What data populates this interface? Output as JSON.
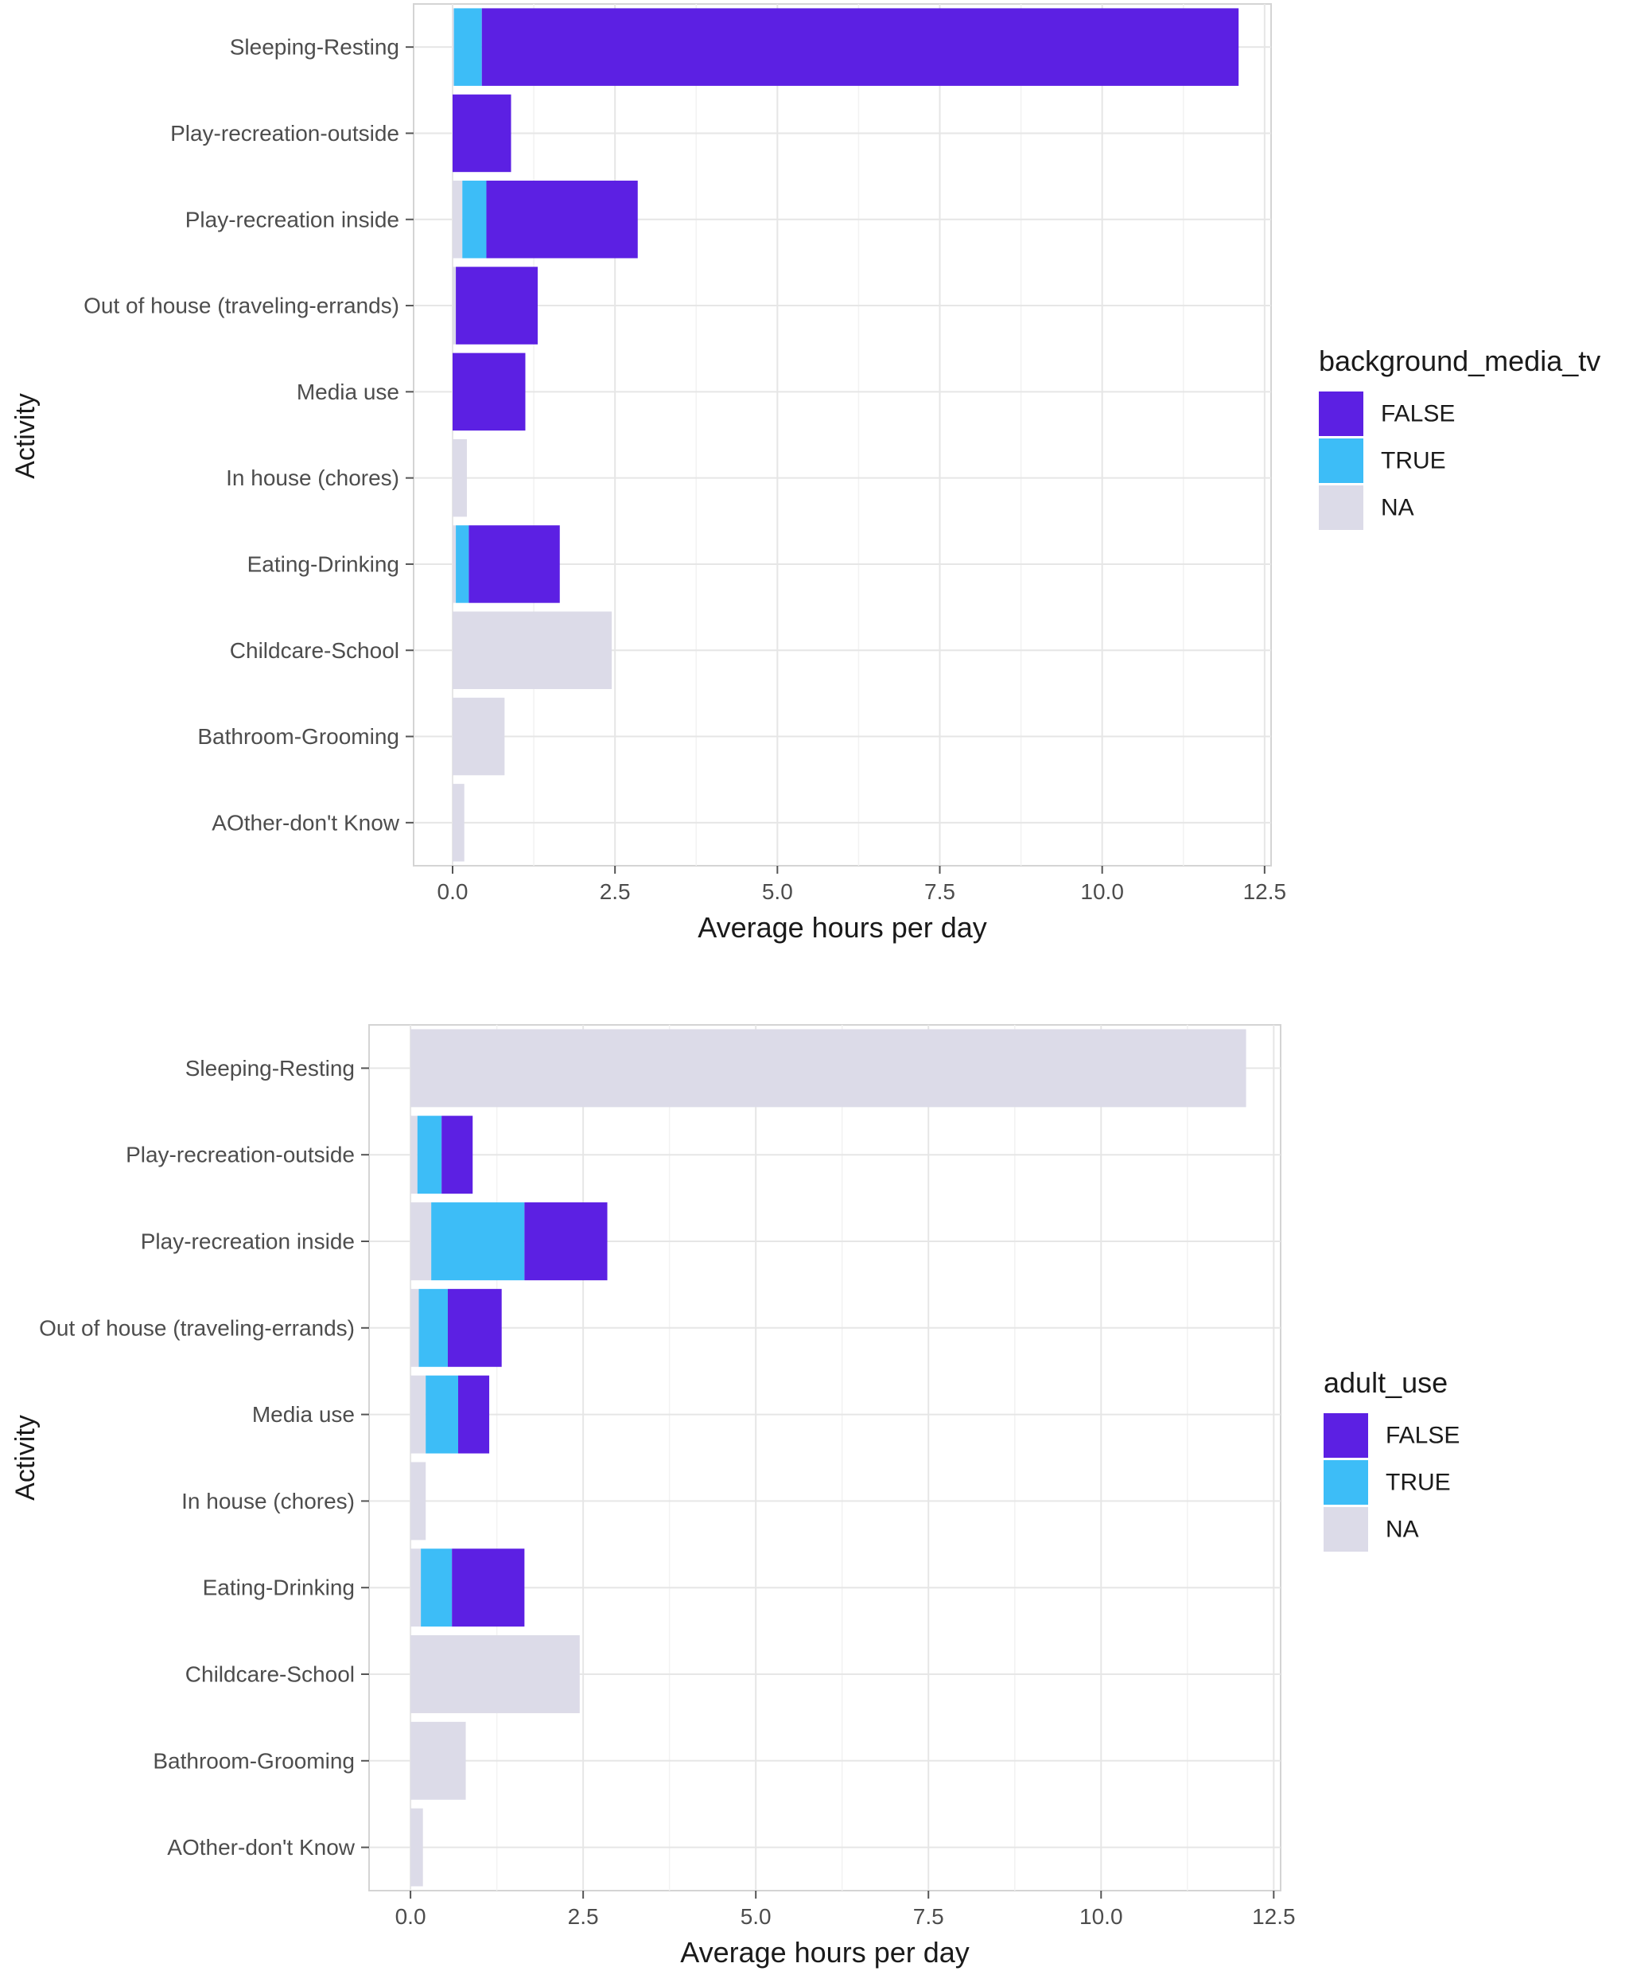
{
  "chart_data": [
    {
      "type": "bar",
      "orientation": "horizontal",
      "stacked": true,
      "xlabel": "Average hours per day",
      "ylabel": "Activity",
      "xlim": [
        -0.6,
        12.6
      ],
      "xticks": [
        0.0,
        2.5,
        5.0,
        7.5,
        10.0,
        12.5
      ],
      "xtick_labels": [
        "0.0",
        "2.5",
        "5.0",
        "7.5",
        "10.0",
        "12.5"
      ],
      "grid": true,
      "legend": {
        "title": "background_media_tv",
        "entries": [
          "FALSE",
          "TRUE",
          "NA"
        ],
        "placement": "right"
      },
      "categories": [
        "Sleeping-Resting",
        "Play-recreation-outside",
        "Play-recreation inside",
        "Out of house (traveling-errands)",
        "Media use",
        "In house (chores)",
        "Eating-Drinking",
        "Childcare-School",
        "Bathroom-Grooming",
        "AOther-don't Know"
      ],
      "series": [
        {
          "name": "NA",
          "values": [
            0.02,
            0.0,
            0.15,
            0.05,
            0.0,
            0.22,
            0.05,
            2.45,
            0.8,
            0.18
          ]
        },
        {
          "name": "TRUE",
          "values": [
            0.43,
            0.0,
            0.37,
            0.0,
            0.0,
            0.0,
            0.2,
            0.0,
            0.0,
            0.0
          ]
        },
        {
          "name": "FALSE",
          "values": [
            11.65,
            0.9,
            2.33,
            1.26,
            1.12,
            0.0,
            1.4,
            0.0,
            0.0,
            0.0
          ]
        }
      ],
      "colors": {
        "FALSE": "#5c20e3",
        "TRUE": "#3dbdf7",
        "NA": "#dcdbe8"
      }
    },
    {
      "type": "bar",
      "orientation": "horizontal",
      "stacked": true,
      "xlabel": "Average hours per day",
      "ylabel": "Activity",
      "xlim": [
        -0.6,
        12.6
      ],
      "xticks": [
        0.0,
        2.5,
        5.0,
        7.5,
        10.0,
        12.5
      ],
      "xtick_labels": [
        "0.0",
        "2.5",
        "5.0",
        "7.5",
        "10.0",
        "12.5"
      ],
      "grid": true,
      "legend": {
        "title": "adult_use",
        "entries": [
          "FALSE",
          "TRUE",
          "NA"
        ],
        "placement": "right"
      },
      "categories": [
        "Sleeping-Resting",
        "Play-recreation-outside",
        "Play-recreation inside",
        "Out of house (traveling-errands)",
        "Media use",
        "In house (chores)",
        "Eating-Drinking",
        "Childcare-School",
        "Bathroom-Grooming",
        "AOther-don't Know"
      ],
      "series": [
        {
          "name": "NA",
          "values": [
            12.1,
            0.1,
            0.3,
            0.12,
            0.22,
            0.22,
            0.15,
            2.45,
            0.8,
            0.18
          ]
        },
        {
          "name": "TRUE",
          "values": [
            0.0,
            0.35,
            1.35,
            0.42,
            0.47,
            0.0,
            0.45,
            0.0,
            0.0,
            0.0
          ]
        },
        {
          "name": "FALSE",
          "values": [
            0.0,
            0.45,
            1.2,
            0.78,
            0.45,
            0.0,
            1.05,
            0.0,
            0.0,
            0.0
          ]
        }
      ],
      "colors": {
        "FALSE": "#5c20e3",
        "TRUE": "#3dbdf7",
        "NA": "#dcdbe8"
      }
    }
  ],
  "style": {
    "panel_border": "#d4d4d4",
    "grid_major": "#e6e6e6",
    "grid_minor": "#f2f2f2",
    "tick_text": "#4d4d4d",
    "label_text": "#1a1a1a"
  }
}
